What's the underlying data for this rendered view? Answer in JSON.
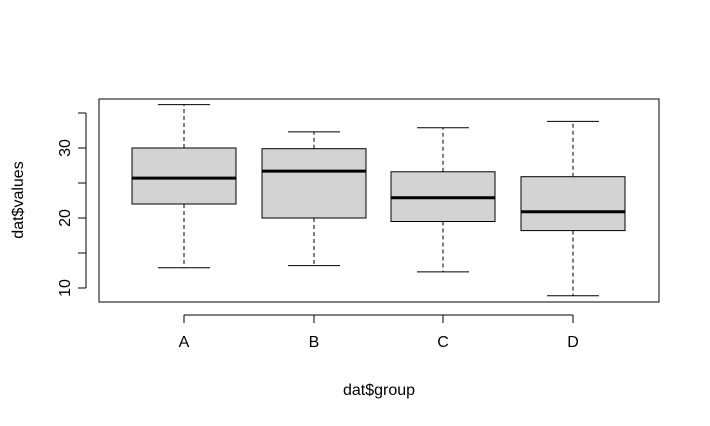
{
  "chart_data": {
    "type": "boxplot",
    "title": "",
    "xlabel": "dat$group",
    "ylabel": "dat$values",
    "ylim": [
      8,
      37
    ],
    "yticks": [
      10,
      20,
      30
    ],
    "yticks_minor": [
      15,
      25,
      35
    ],
    "grid": false,
    "categories": [
      "A",
      "B",
      "C",
      "D"
    ],
    "boxes": [
      {
        "name": "A",
        "whisker_low": 12.9,
        "q1": 22.0,
        "median": 25.7,
        "q3": 30.0,
        "whisker_high": 36.2
      },
      {
        "name": "B",
        "whisker_low": 13.2,
        "q1": 20.0,
        "median": 26.7,
        "q3": 29.9,
        "whisker_high": 32.3
      },
      {
        "name": "C",
        "whisker_low": 12.3,
        "q1": 19.5,
        "median": 22.9,
        "q3": 26.6,
        "whisker_high": 32.9
      },
      {
        "name": "D",
        "whisker_low": 8.9,
        "q1": 18.2,
        "median": 20.9,
        "q3": 25.9,
        "whisker_high": 33.8
      }
    ],
    "colors": {
      "box_fill": "#d3d3d3",
      "stroke": "#000000",
      "background": "#ffffff"
    }
  }
}
